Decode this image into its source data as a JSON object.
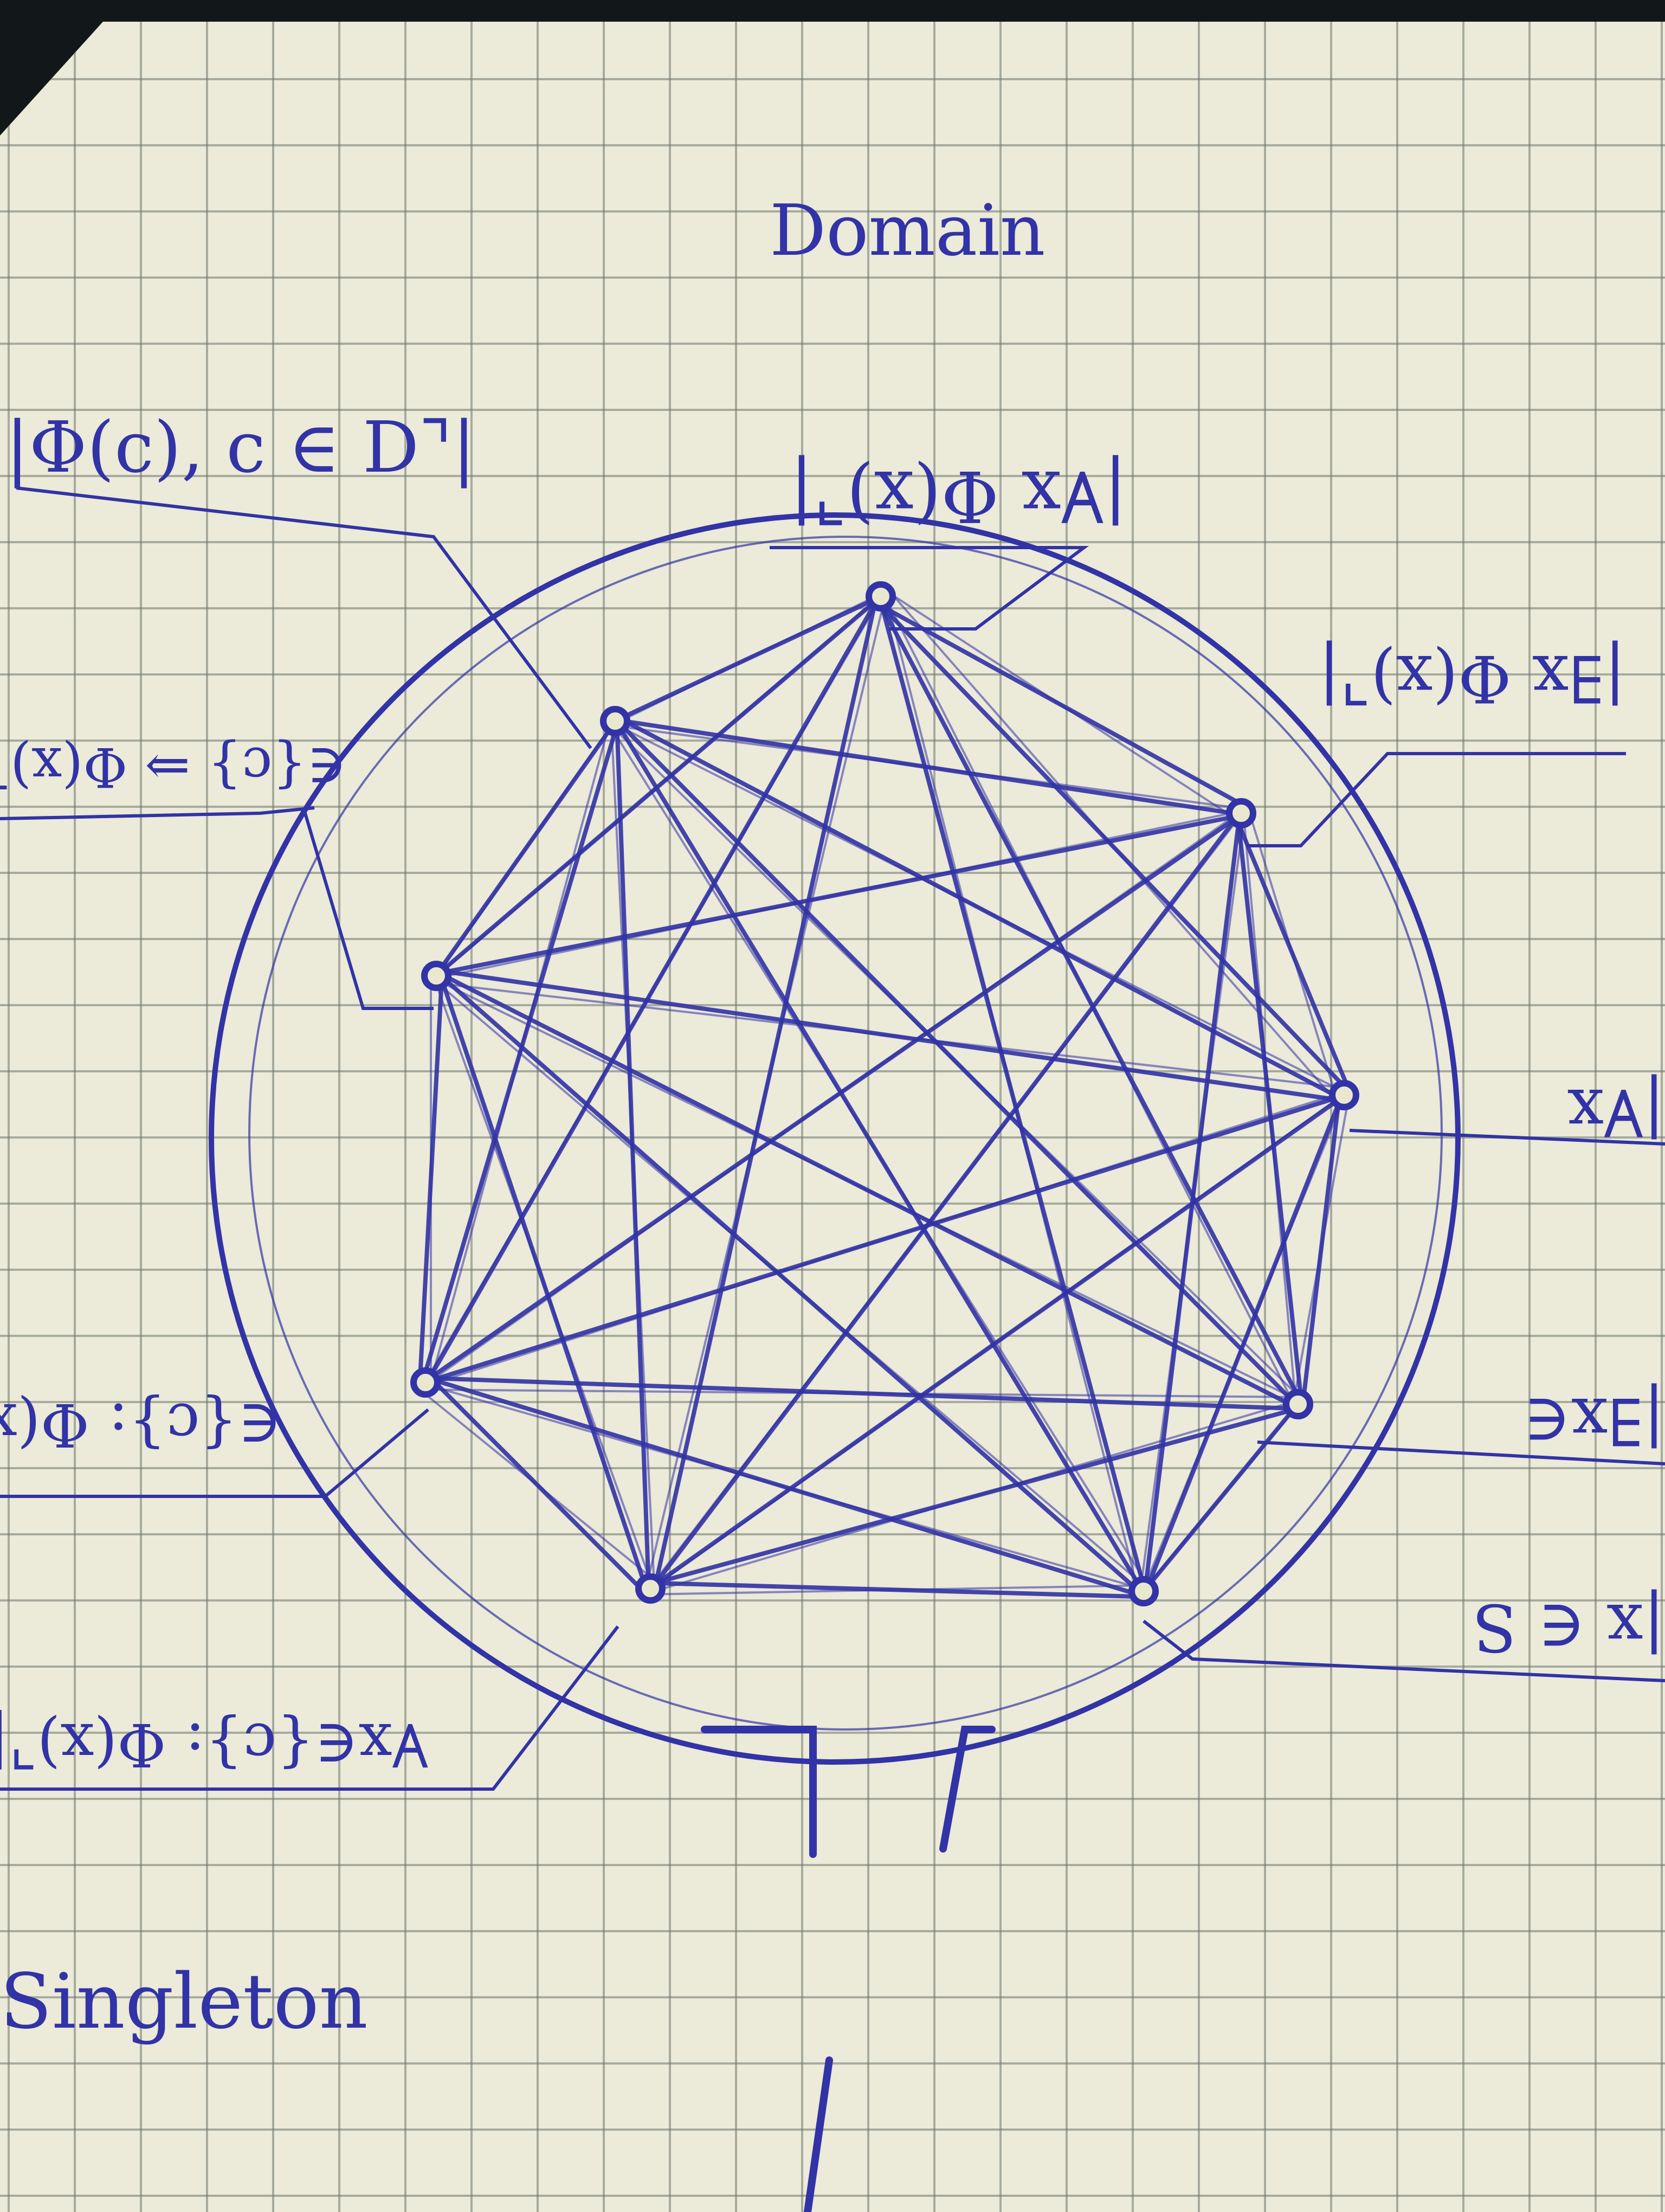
{
  "title": "Domain",
  "caption": "Singleton",
  "ink_color": "#3133a6",
  "paper_color": "#ecead8",
  "nodes": [
    {
      "id": "top",
      "label": "|∀x Φ(x)⌝|",
      "flipped": true
    },
    {
      "id": "upper-right",
      "label": "|∃x Φ(x)⌝|",
      "flipped": true
    },
    {
      "id": "right",
      "label": "|∀x",
      "flipped": true
    },
    {
      "id": "lower-right",
      "label": "|∃x∈",
      "flipped": true
    },
    {
      "id": "bottom-right",
      "label": "|x ∈ S",
      "flipped": true
    },
    {
      "id": "bottom-left",
      "label": "∀x∈{c}: Φ(x)⌝|",
      "flipped": true
    },
    {
      "id": "left-lower",
      "label": "∈{c}: Φ(x)⌝|",
      "flipped": true
    },
    {
      "id": "left-upper",
      "label": "",
      "flipped": false
    },
    {
      "id": "upper-left",
      "label": "|Φ(c), c ∈ D⌝|",
      "flipped": false
    },
    {
      "id": "left-edge",
      "label": "∈{c} ⇒ Φ(x)⌝|",
      "flipped": true
    }
  ]
}
